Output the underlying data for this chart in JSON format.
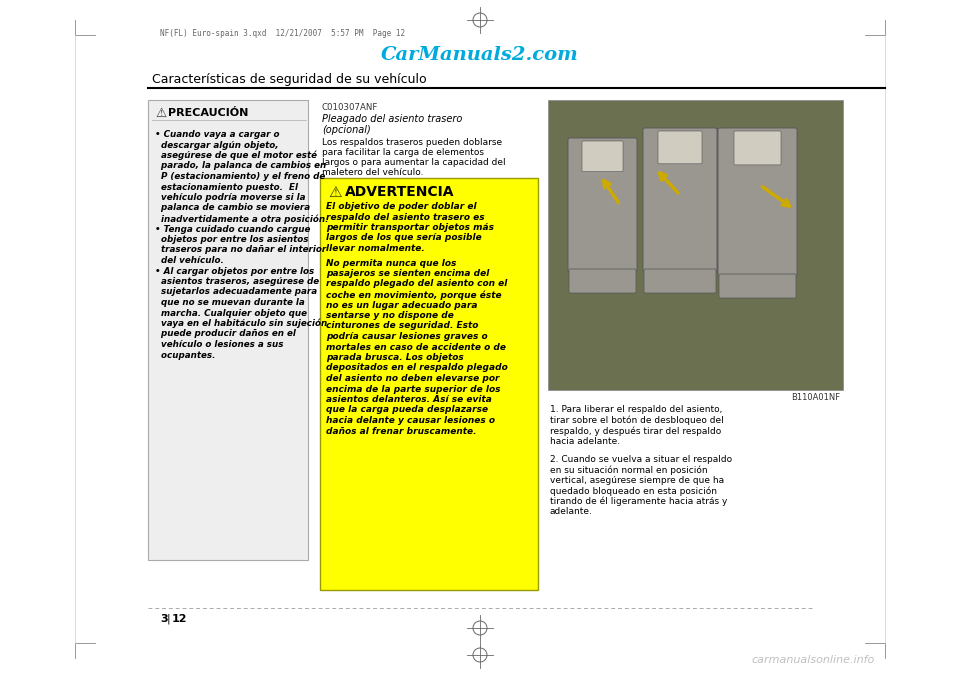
{
  "bg_color": "#ffffff",
  "top_file_text": "NF(FL) Euro-spain 3.qxd  12/21/2007  5:57 PM  Page 12",
  "watermark_top": "CarManuals2.com",
  "watermark_top_color": "#00aadd",
  "section_title": "Características de seguridad de su vehículo",
  "page_number": "3",
  "page_number2": "12",
  "watermark_bottom": "carmanualsonline.info",
  "watermark_bottom_color": "#c0c0c0",
  "precaucion_box_bg": "#eeeeee",
  "precaucion_title_icon": "⚠",
  "precaucion_title_text": "PRECAUCIÓN",
  "precaucion_lines": [
    "• Cuando vaya a cargar o",
    "  descargar algún objeto,",
    "  asegúrese de que el motor esté",
    "  parado, la palanca de cambios en",
    "  P (estacionamiento) y el freno de",
    "  estacionamiento puesto.  El",
    "  vehículo podría moverse si la",
    "  palanca de cambio se moviera",
    "  inadvertidamente a otra posición.",
    "• Tenga cuidado cuando cargue",
    "  objetos por entre los asientos",
    "  traseros para no dañar el interior",
    "  del vehículo.",
    "• Al cargar objetos por entre los",
    "  asientos traseros, asegúrese de",
    "  sujetarlos adecuadamente para",
    "  que no se muevan durante la",
    "  marcha. Cualquier objeto que",
    "  vaya en el habitáculo sin sujeción",
    "  puede producir daños en el",
    "  vehículo o lesiones a sus",
    "  ocupantes."
  ],
  "c010307anf": "C010307ANF",
  "pleagado_title1": "Pleagado del asiento trasero",
  "pleagado_title2": "(opcional)",
  "pleagado_lines": [
    "Los respaldos traseros pueden doblarse",
    "para facilitar la carga de elementos",
    "largos o para aumentar la capacidad del",
    "maletero del vehículo."
  ],
  "advertencia_box_bg": "#ffff00",
  "advertencia_title_icon": "⚠",
  "advertencia_title_text": "ADVERTENCIA",
  "advertencia_lines1": [
    "El objetivo de poder doblar el",
    "respaldo del asiento trasero es",
    "permitir transportar objetos más",
    "largos de los que sería posible",
    "llevar nomalmente."
  ],
  "advertencia_lines2": [
    "No permita nunca que los",
    "pasajeros se sienten encima del",
    "respaldo plegado del asiento con el",
    "coche en movimiento, porque éste",
    "no es un lugar adecuado para",
    "sentarse y no dispone de",
    "cinturones de seguridad. Esto",
    "podría causar lesiones graves o",
    "mortales en caso de accidente o de",
    "parada brusca. Los objetos",
    "depositados en el respaldo plegado",
    "del asiento no deben elevarse por",
    "encima de la parte superior de los",
    "asientos delanteros. Así se evita",
    "que la carga pueda desplazarse",
    "hacia delante y causar lesiones o",
    "daños al frenar bruscamente."
  ],
  "image_label": "B110A01NF",
  "right_lines1": [
    "1. Para liberar el respaldo del asiento,",
    "tirar sobre el botón de desbloqueo del",
    "respaldo, y después tirar del respaldo",
    "hacia adelante."
  ],
  "right_lines2": [
    "2. Cuando se vuelva a situar el respaldo",
    "en su situación normal en posición",
    "vertical, asegúrese siempre de que ha",
    "quedado bloqueado en esta posición",
    "tirando de él ligeramente hacia atrás y",
    "adelante."
  ],
  "seat_img_color": "#b8b4a8",
  "seat_dark": "#9a9690",
  "seat_light": "#d0ccc0",
  "arrow_color": "#ccaa00"
}
